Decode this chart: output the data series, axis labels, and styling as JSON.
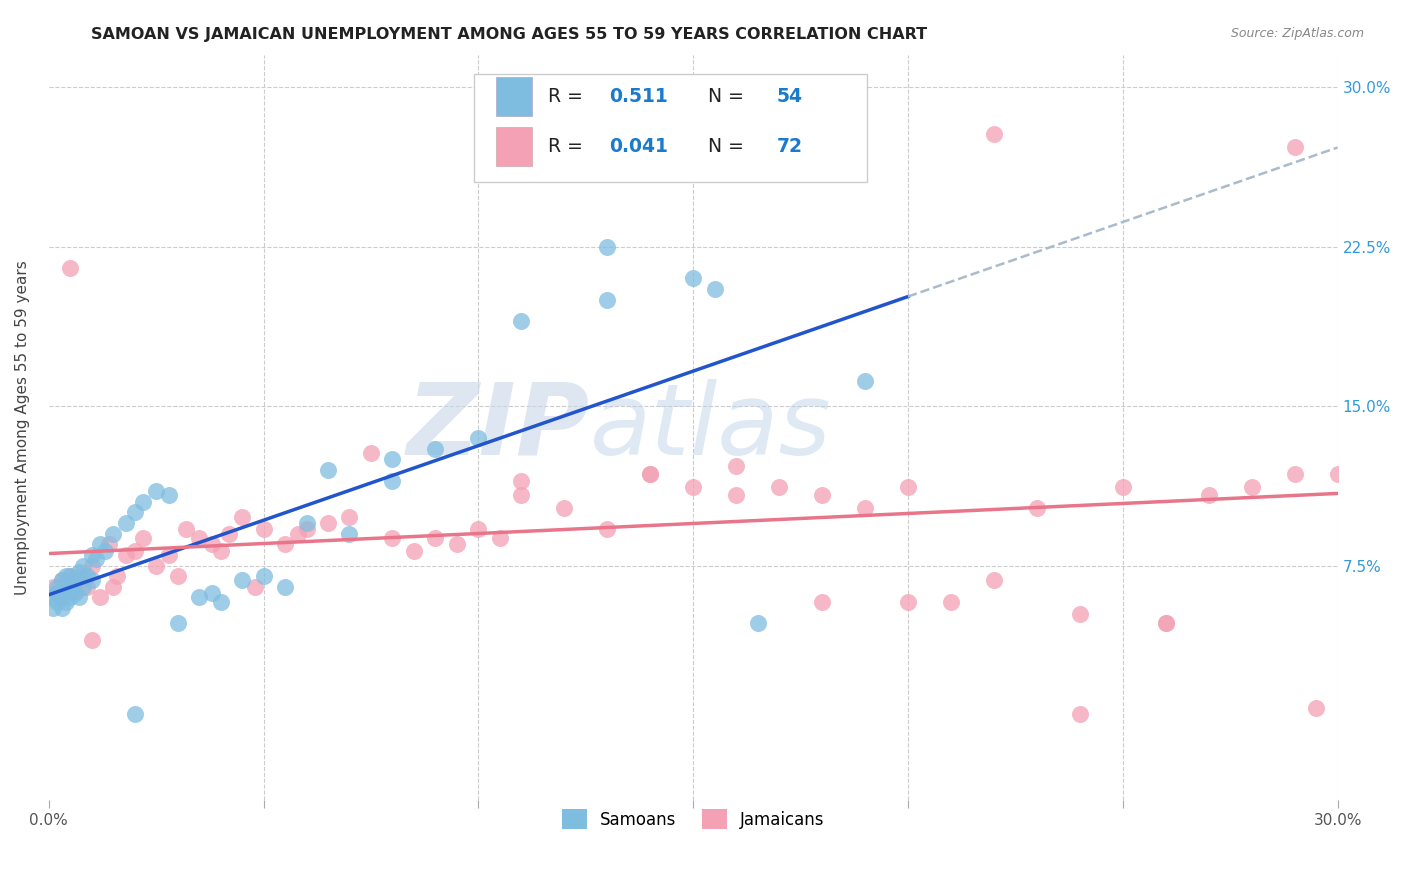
{
  "title": "SAMOAN VS JAMAICAN UNEMPLOYMENT AMONG AGES 55 TO 59 YEARS CORRELATION CHART",
  "source": "Source: ZipAtlas.com",
  "ylabel": "Unemployment Among Ages 55 to 59 years",
  "xlim": [
    0.0,
    0.3
  ],
  "ylim": [
    -0.035,
    0.315
  ],
  "samoan_color": "#7fbde0",
  "jamaican_color": "#f4a0b5",
  "samoan_R": 0.511,
  "samoan_N": 54,
  "jamaican_R": 0.041,
  "jamaican_N": 72,
  "samoan_line_color": "#2255cc",
  "jamaican_line_color": "#e8758a",
  "dash_line_color": "#aabbcc",
  "watermark_zip": "ZIP",
  "watermark_atlas": "atlas",
  "samoan_x": [
    0.001,
    0.001,
    0.002,
    0.002,
    0.002,
    0.003,
    0.003,
    0.003,
    0.004,
    0.004,
    0.004,
    0.005,
    0.005,
    0.005,
    0.006,
    0.006,
    0.007,
    0.007,
    0.008,
    0.008,
    0.009,
    0.01,
    0.01,
    0.011,
    0.012,
    0.013,
    0.015,
    0.018,
    0.02,
    0.022,
    0.025,
    0.028,
    0.03,
    0.035,
    0.038,
    0.04,
    0.045,
    0.05,
    0.055,
    0.06,
    0.065,
    0.07,
    0.08,
    0.09,
    0.1,
    0.11,
    0.13,
    0.15,
    0.165,
    0.19,
    0.13,
    0.155,
    0.08,
    0.02
  ],
  "samoan_y": [
    0.055,
    0.06,
    0.058,
    0.062,
    0.065,
    0.055,
    0.06,
    0.068,
    0.058,
    0.063,
    0.07,
    0.06,
    0.065,
    0.07,
    0.062,
    0.068,
    0.06,
    0.072,
    0.065,
    0.075,
    0.07,
    0.068,
    0.08,
    0.078,
    0.085,
    0.082,
    0.09,
    0.095,
    0.1,
    0.105,
    0.11,
    0.108,
    0.048,
    0.06,
    0.062,
    0.058,
    0.068,
    0.07,
    0.065,
    0.095,
    0.12,
    0.09,
    0.115,
    0.13,
    0.135,
    0.19,
    0.2,
    0.21,
    0.048,
    0.162,
    0.225,
    0.205,
    0.125,
    0.005
  ],
  "jamaican_x": [
    0.001,
    0.002,
    0.003,
    0.004,
    0.005,
    0.006,
    0.007,
    0.008,
    0.009,
    0.01,
    0.012,
    0.014,
    0.015,
    0.016,
    0.018,
    0.02,
    0.022,
    0.025,
    0.028,
    0.03,
    0.032,
    0.035,
    0.038,
    0.04,
    0.042,
    0.045,
    0.048,
    0.05,
    0.055,
    0.058,
    0.06,
    0.065,
    0.07,
    0.075,
    0.08,
    0.085,
    0.09,
    0.095,
    0.1,
    0.105,
    0.11,
    0.12,
    0.13,
    0.14,
    0.15,
    0.16,
    0.17,
    0.18,
    0.19,
    0.2,
    0.21,
    0.22,
    0.23,
    0.24,
    0.25,
    0.26,
    0.27,
    0.28,
    0.29,
    0.295,
    0.3,
    0.14,
    0.16,
    0.18,
    0.2,
    0.22,
    0.24,
    0.26,
    0.11,
    0.29,
    0.005,
    0.01
  ],
  "jamaican_y": [
    0.065,
    0.062,
    0.068,
    0.065,
    0.07,
    0.063,
    0.068,
    0.07,
    0.065,
    0.075,
    0.06,
    0.085,
    0.065,
    0.07,
    0.08,
    0.082,
    0.088,
    0.075,
    0.08,
    0.07,
    0.092,
    0.088,
    0.085,
    0.082,
    0.09,
    0.098,
    0.065,
    0.092,
    0.085,
    0.09,
    0.092,
    0.095,
    0.098,
    0.128,
    0.088,
    0.082,
    0.088,
    0.085,
    0.092,
    0.088,
    0.108,
    0.102,
    0.092,
    0.118,
    0.112,
    0.122,
    0.112,
    0.108,
    0.102,
    0.112,
    0.058,
    0.068,
    0.102,
    0.052,
    0.112,
    0.048,
    0.108,
    0.112,
    0.118,
    0.008,
    0.118,
    0.118,
    0.108,
    0.058,
    0.058,
    0.278,
    0.005,
    0.048,
    0.115,
    0.272,
    0.215,
    0.04
  ]
}
